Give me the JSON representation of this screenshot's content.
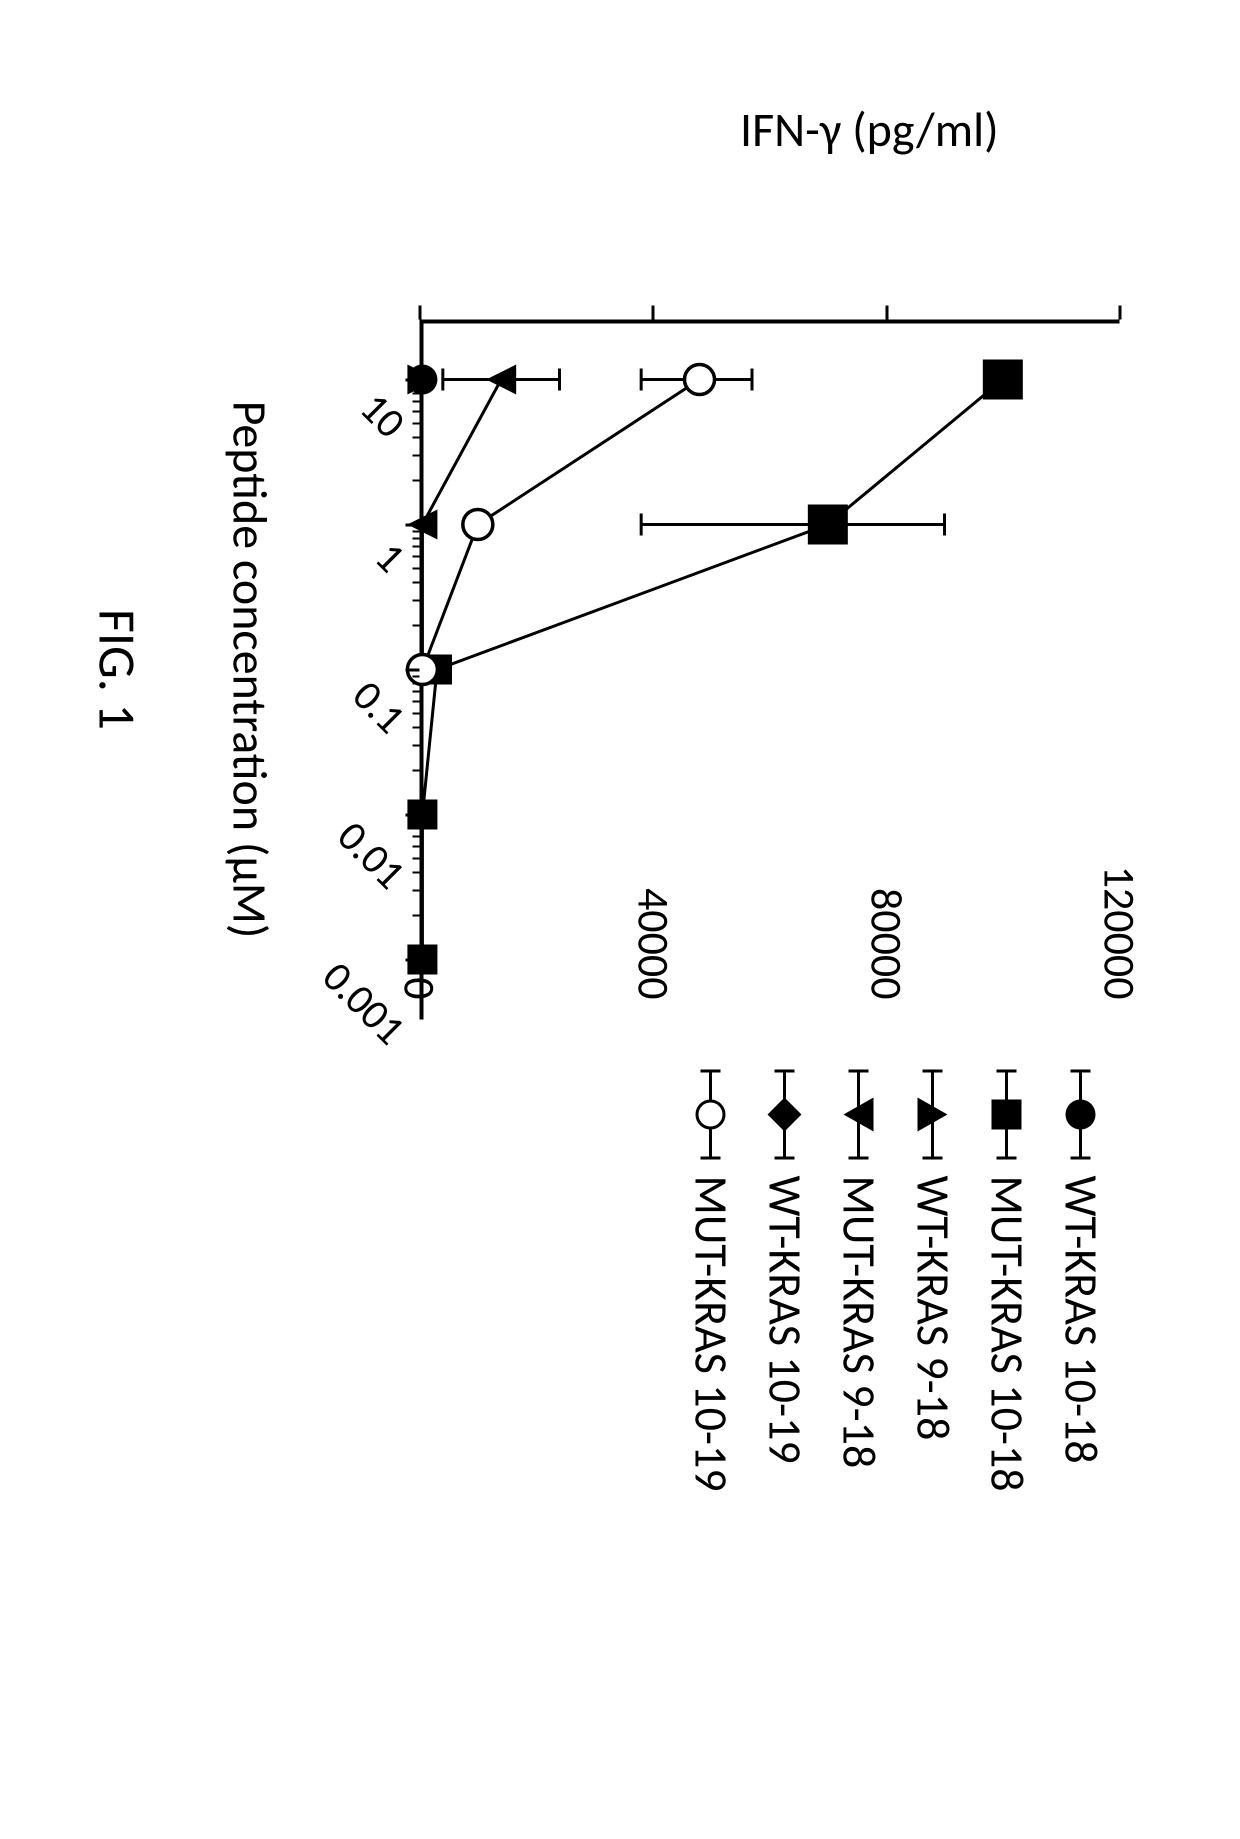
{
  "chart": {
    "type": "line-scatter",
    "figure_label": "FIG. 1",
    "y_axis": {
      "title": "IFN-γ (pg/ml)",
      "min": 0,
      "max": 120000,
      "ticks": [
        0,
        40000,
        80000,
        120000
      ],
      "tick_labels": [
        "0",
        "40000",
        "80000",
        "120000"
      ],
      "title_fontsize": 48,
      "tick_fontsize": 44
    },
    "x_axis": {
      "title": "Peptide concentration (μM)",
      "scale": "log",
      "min_log": -3,
      "max_log": 1,
      "ticks_log": [
        1,
        0,
        -1,
        -2,
        -3
      ],
      "tick_labels": [
        "10",
        "1",
        "0.1",
        "0.01",
        "0.001"
      ],
      "tick_rotation_deg": -45,
      "title_fontsize": 48,
      "tick_fontsize": 42,
      "reversed": true
    },
    "series": [
      {
        "label": "WT-KRAS 10-18",
        "marker": "circle-filled",
        "color": "#000000",
        "points": [
          {
            "xlog": 1,
            "y": 500
          }
        ],
        "errors": []
      },
      {
        "label": "MUT-KRAS 10-18",
        "marker": "square-filled",
        "color": "#000000",
        "points": [
          {
            "xlog": 1,
            "y": 100000
          },
          {
            "xlog": 0,
            "y": 70000
          },
          {
            "xlog": -1,
            "y": 3000
          },
          {
            "xlog": -2,
            "y": 500
          },
          {
            "xlog": -3,
            "y": 500
          }
        ],
        "errors": [
          {
            "xlog": 0,
            "lo": 38000,
            "hi": 90000
          }
        ]
      },
      {
        "label": "WT-KRAS 9-18",
        "marker": "triangle-up",
        "color": "#000000",
        "points": [
          {
            "xlog": 1,
            "y": 500
          }
        ],
        "errors": []
      },
      {
        "label": "MUT-KRAS 9-18",
        "marker": "triangle-down",
        "color": "#000000",
        "points": [
          {
            "xlog": 1,
            "y": 14000
          },
          {
            "xlog": 0,
            "y": 500
          },
          {
            "xlog": -1,
            "y": 500
          }
        ],
        "errors": [
          {
            "xlog": 1,
            "lo": 4000,
            "hi": 24000
          }
        ]
      },
      {
        "label": "WT-KRAS 10-19",
        "marker": "diamond",
        "color": "#000000",
        "points": [
          {
            "xlog": 1,
            "y": 500
          }
        ],
        "errors": []
      },
      {
        "label": "MUT-KRAS 10-19",
        "marker": "circle-open",
        "color": "#000000",
        "points": [
          {
            "xlog": 1,
            "y": 48000
          },
          {
            "xlog": 0,
            "y": 10000
          },
          {
            "xlog": -1,
            "y": 500
          }
        ],
        "errors": [
          {
            "xlog": 1,
            "lo": 38000,
            "hi": 57000
          }
        ]
      }
    ],
    "styling": {
      "background_color": "#ffffff",
      "axis_color": "#000000",
      "axis_width": 4,
      "line_width": 3,
      "marker_size": 30,
      "marker_size_large": 40,
      "error_cap_width": 22,
      "font_family": "Calibri, Arial, sans-serif"
    }
  }
}
